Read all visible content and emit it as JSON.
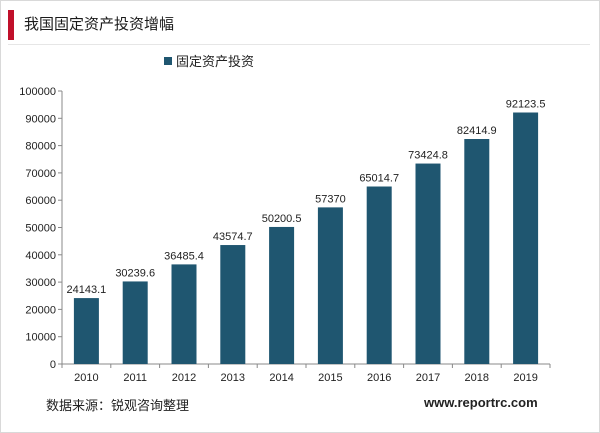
{
  "page": {
    "title": "我国固定资产投资增幅",
    "source": "数据来源：锐观咨询整理",
    "website": "www.reportrc.com"
  },
  "colors": {
    "accent": "#c0102a",
    "bar": "#1f5670"
  },
  "chart_data": {
    "type": "bar",
    "categories": [
      "2010",
      "2011",
      "2012",
      "2013",
      "2014",
      "2015",
      "2016",
      "2017",
      "2018",
      "2019"
    ],
    "series": [
      {
        "name": "固定资产投资",
        "values": [
          24143.1,
          30239.6,
          36485.4,
          43574.7,
          50200.5,
          57370,
          65014.7,
          73424.8,
          82414.9,
          92123.5
        ],
        "labels": [
          "24143.1",
          "30239.6",
          "36485.4",
          "43574.7",
          "50200.5",
          "57370",
          "65014.7",
          "73424.8",
          "82414.9",
          "92123.5"
        ]
      }
    ],
    "ylim": [
      0,
      100000
    ],
    "yticks": [
      0,
      10000,
      20000,
      30000,
      40000,
      50000,
      60000,
      70000,
      80000,
      90000,
      100000
    ],
    "legend_position": "top",
    "grid": false
  }
}
